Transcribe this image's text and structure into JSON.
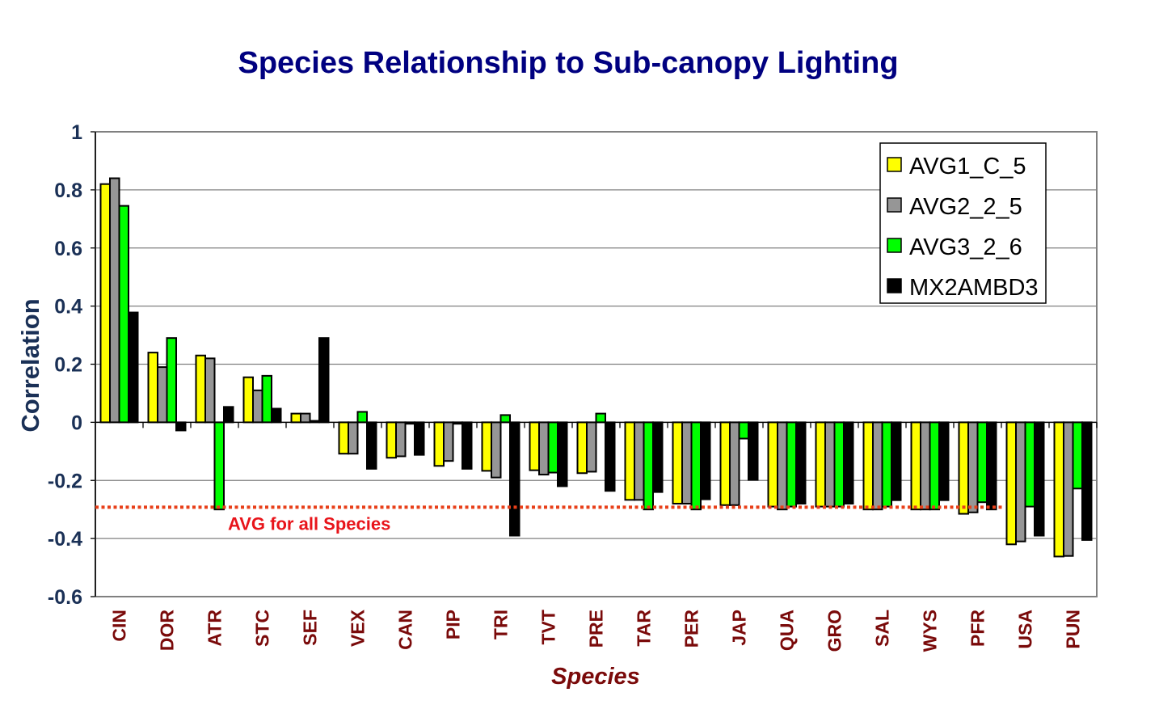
{
  "chart_data": {
    "type": "bar",
    "title": "Species Relationship to Sub-canopy Lighting",
    "xlabel": "Species",
    "ylabel": "Correlation",
    "ylim": [
      -0.6,
      1.0
    ],
    "yticks": [
      1,
      0.8,
      0.6,
      0.4,
      0.2,
      0,
      -0.2,
      -0.4,
      -0.6
    ],
    "ytick_labels": [
      "1",
      "0.8",
      "0.6",
      "0.4",
      "0.2",
      "0",
      "-0.2",
      "-0.4",
      "-0.6"
    ],
    "grid": true,
    "legend_position": "top-right",
    "categories": [
      "CIN",
      "DOR",
      "ATR",
      "STC",
      "SEF",
      "VEX",
      "CAN",
      "PIP",
      "TRI",
      "TVT",
      "PRE",
      "TAR",
      "PER",
      "JAP",
      "QUA",
      "GRO",
      "SAL",
      "WYS",
      "PFR",
      "USA",
      "PUN"
    ],
    "series": [
      {
        "name": "AVG1_C_5",
        "color": "#ffff00",
        "values": [
          0.82,
          0.24,
          0.23,
          0.155,
          0.03,
          -0.108,
          -0.122,
          -0.15,
          -0.167,
          -0.165,
          -0.175,
          -0.267,
          -0.28,
          -0.285,
          -0.29,
          -0.29,
          -0.3,
          -0.3,
          -0.315,
          -0.42,
          -0.462
        ]
      },
      {
        "name": "AVG2_2_5",
        "color": "#969696",
        "values": [
          0.84,
          0.19,
          0.22,
          0.11,
          0.03,
          -0.108,
          -0.117,
          -0.133,
          -0.19,
          -0.18,
          -0.17,
          -0.267,
          -0.28,
          -0.285,
          -0.3,
          -0.29,
          -0.3,
          -0.3,
          -0.31,
          -0.41,
          -0.46
        ]
      },
      {
        "name": "AVG3_2_6",
        "color": "#00ff00",
        "values": [
          0.745,
          0.29,
          -0.3,
          0.16,
          0.005,
          0.036,
          -0.005,
          -0.005,
          0.025,
          -0.173,
          0.03,
          -0.3,
          -0.3,
          -0.056,
          -0.29,
          -0.29,
          -0.29,
          -0.3,
          -0.275,
          -0.29,
          -0.228
        ]
      },
      {
        "name": "MX2AMBD3",
        "color": "#000000",
        "values": [
          0.378,
          -0.028,
          0.053,
          0.047,
          0.29,
          -0.16,
          -0.112,
          -0.16,
          -0.39,
          -0.22,
          -0.236,
          -0.24,
          -0.265,
          -0.198,
          -0.28,
          -0.28,
          -0.268,
          -0.268,
          -0.3,
          -0.39,
          -0.405
        ]
      }
    ],
    "reference_line": {
      "label": "AVG for all Species",
      "value": -0.292,
      "color": "#e8401a"
    }
  }
}
